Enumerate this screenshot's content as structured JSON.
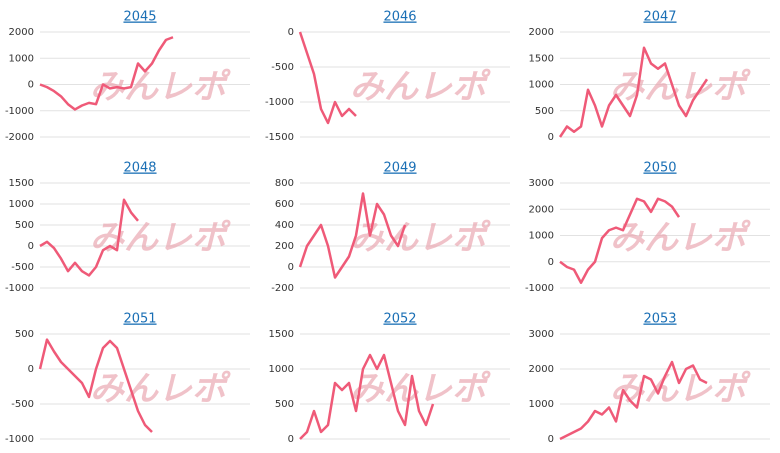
{
  "watermark": "みんレポ",
  "chart_data": [
    {
      "type": "line",
      "title": "2045",
      "ylim": [
        -2000,
        2000
      ],
      "yticks": [
        -2000,
        -1000,
        0,
        1000,
        2000
      ],
      "color": "#ef5a78",
      "values": [
        0,
        -100,
        -250,
        -450,
        -750,
        -950,
        -800,
        -700,
        -750,
        0,
        -150,
        -100,
        -150,
        -100,
        800,
        500,
        800,
        1300,
        1700,
        1800
      ]
    },
    {
      "type": "line",
      "title": "2046",
      "ylim": [
        -1500,
        0
      ],
      "yticks": [
        -1500,
        -1000,
        -500,
        0
      ],
      "color": "#ef5a78",
      "values": [
        0,
        -300,
        -600,
        -1100,
        -1300,
        -1000,
        -1200,
        -1100,
        -1200
      ]
    },
    {
      "type": "line",
      "title": "2047",
      "ylim": [
        0,
        2000
      ],
      "yticks": [
        0,
        500,
        1000,
        1500,
        2000
      ],
      "color": "#ef5a78",
      "values": [
        0,
        200,
        100,
        200,
        900,
        600,
        200,
        600,
        800,
        600,
        400,
        800,
        1700,
        1400,
        1300,
        1400,
        1000,
        600,
        400,
        700,
        900,
        1100
      ]
    },
    {
      "type": "line",
      "title": "2048",
      "ylim": [
        -1000,
        1500
      ],
      "yticks": [
        -1000,
        -500,
        0,
        500,
        1000,
        1500
      ],
      "color": "#ef5a78",
      "values": [
        0,
        100,
        -50,
        -300,
        -600,
        -400,
        -600,
        -700,
        -500,
        -100,
        0,
        -100,
        1100,
        800,
        600
      ]
    },
    {
      "type": "line",
      "title": "2049",
      "ylim": [
        -200,
        800
      ],
      "yticks": [
        -200,
        0,
        200,
        400,
        600,
        800
      ],
      "color": "#ef5a78",
      "values": [
        0,
        200,
        300,
        400,
        200,
        -100,
        0,
        100,
        300,
        700,
        300,
        600,
        500,
        300,
        200,
        400
      ]
    },
    {
      "type": "line",
      "title": "2050",
      "ylim": [
        -1000,
        3000
      ],
      "yticks": [
        -1000,
        0,
        1000,
        2000,
        3000
      ],
      "color": "#ef5a78",
      "values": [
        0,
        -200,
        -300,
        -800,
        -300,
        0,
        900,
        1200,
        1300,
        1200,
        1800,
        2400,
        2300,
        1900,
        2400,
        2300,
        2100,
        1700
      ]
    },
    {
      "type": "line",
      "title": "2051",
      "ylim": [
        -1000,
        500
      ],
      "yticks": [
        -1000,
        -500,
        0,
        500
      ],
      "color": "#ef5a78",
      "values": [
        0,
        420,
        250,
        100,
        0,
        -100,
        -200,
        -400,
        0,
        300,
        400,
        300,
        0,
        -300,
        -600,
        -800,
        -900
      ]
    },
    {
      "type": "line",
      "title": "2052",
      "ylim": [
        0,
        1500
      ],
      "yticks": [
        0,
        500,
        1000,
        1500
      ],
      "color": "#ef5a78",
      "values": [
        0,
        100,
        400,
        100,
        200,
        800,
        700,
        800,
        400,
        1000,
        1200,
        1000,
        1200,
        800,
        400,
        200,
        900,
        400,
        200,
        500
      ]
    },
    {
      "type": "line",
      "title": "2053",
      "ylim": [
        0,
        3000
      ],
      "yticks": [
        0,
        1000,
        2000,
        3000
      ],
      "color": "#ef5a78",
      "values": [
        0,
        100,
        200,
        300,
        500,
        800,
        700,
        900,
        500,
        1400,
        1100,
        900,
        1800,
        1700,
        1300,
        1800,
        2200,
        1600,
        2000,
        2100,
        1700,
        1600
      ]
    }
  ]
}
